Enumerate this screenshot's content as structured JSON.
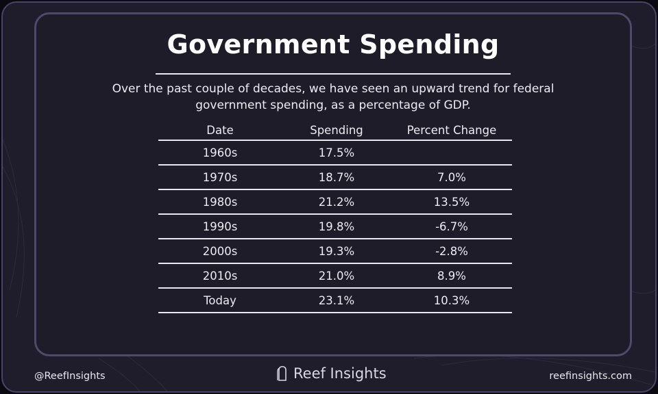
{
  "title": "Government Spending",
  "subtitle": "Over the past couple of decades, we have seen an upward trend for federal government spending, as a percentage of GDP.",
  "table": {
    "headers": [
      "Date",
      "Spending",
      "Percent Change"
    ],
    "rows": [
      [
        "1960s",
        "17.5%",
        ""
      ],
      [
        "1970s",
        "18.7%",
        "7.0%"
      ],
      [
        "1980s",
        "21.2%",
        "13.5%"
      ],
      [
        "1990s",
        "19.8%",
        "-6.7%"
      ],
      [
        "2000s",
        "19.3%",
        "-2.8%"
      ],
      [
        "2010s",
        "21.0%",
        "8.9%"
      ],
      [
        "Today",
        "23.1%",
        "10.3%"
      ]
    ]
  },
  "footer": {
    "handle": "@ReefInsights",
    "brand": "Reef Insights",
    "brand_icon": "reef-logo-icon",
    "website": "reefinsights.com"
  },
  "colors": {
    "background": "#1f1d2b",
    "border": "#4a4566",
    "text": "#ffffff"
  }
}
